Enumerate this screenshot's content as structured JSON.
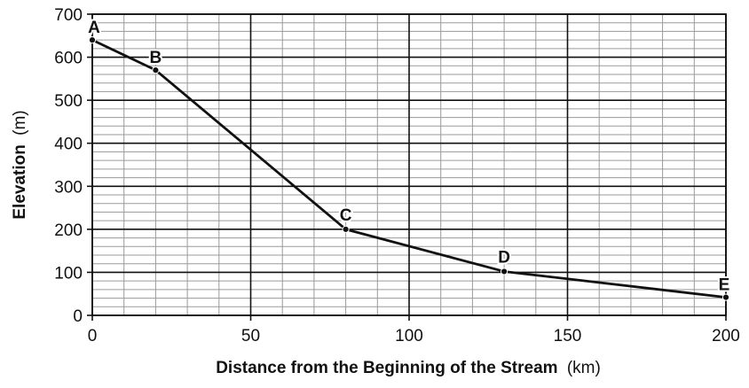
{
  "chart_data": {
    "type": "line",
    "title": "",
    "xlabel": "Distance from the Beginning of the Stream",
    "xlabel_unit": "(km)",
    "ylabel": "Elevation",
    "ylabel_unit": "(m)",
    "xlim": [
      0,
      200
    ],
    "ylim": [
      0,
      700
    ],
    "xticks": [
      0,
      50,
      100,
      150,
      200
    ],
    "yticks": [
      0,
      100,
      200,
      300,
      400,
      500,
      600,
      700
    ],
    "xtick_labels": [
      "0",
      "50",
      "100",
      "150",
      "200"
    ],
    "ytick_labels": [
      "0",
      "100",
      "200",
      "300",
      "400",
      "500",
      "600",
      "700"
    ],
    "grid": true,
    "series": [
      {
        "points": [
          {
            "label": "A",
            "x": 0,
            "y": 640
          },
          {
            "label": "B",
            "x": 20,
            "y": 570
          },
          {
            "label": "C",
            "x": 80,
            "y": 200
          },
          {
            "label": "D",
            "x": 130,
            "y": 102
          },
          {
            "label": "E",
            "x": 200,
            "y": 42
          }
        ]
      }
    ]
  }
}
